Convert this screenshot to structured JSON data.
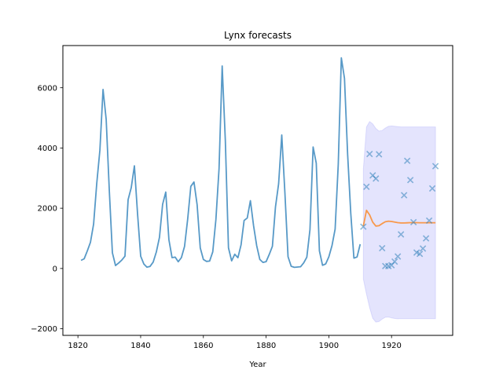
{
  "chart_data": {
    "type": "line",
    "title": "Lynx forecasts",
    "xlabel": "Year",
    "ylabel": "",
    "xlim": [
      1815.2,
      1939.5
    ],
    "ylim": [
      -2220,
      7400
    ],
    "xticks": [
      1820,
      1840,
      1860,
      1880,
      1900,
      1920
    ],
    "yticks": [
      -2000,
      0,
      2000,
      4000,
      6000
    ],
    "grid": false,
    "legend": null,
    "series": [
      {
        "name": "training",
        "kind": "line",
        "color": "#1f77b4",
        "alpha": 0.75,
        "x_start": 1821,
        "values": [
          269,
          321,
          585,
          871,
          1475,
          2821,
          3928,
          5943,
          4950,
          2577,
          523,
          98,
          184,
          279,
          409,
          2285,
          2685,
          3409,
          1824,
          409,
          151,
          45,
          68,
          213,
          546,
          1033,
          2129,
          2536,
          957,
          361,
          377,
          225,
          360,
          731,
          1638,
          2725,
          2871,
          2119,
          684,
          299,
          236,
          245,
          552,
          1623,
          3311,
          6721,
          4254,
          687,
          255,
          473,
          358,
          784,
          1594,
          1676,
          2251,
          1426,
          756,
          299,
          201,
          229,
          469,
          736,
          2042,
          2811,
          4431,
          2511,
          389,
          73,
          39,
          49,
          59,
          188,
          377,
          1292,
          4031,
          3495,
          587,
          105,
          153,
          387,
          758,
          1307,
          3465,
          6991,
          6313,
          3794,
          1836,
          345,
          382,
          808
        ]
      },
      {
        "name": "test",
        "kind": "scatter",
        "marker": "x",
        "color": "#1f77b4",
        "alpha": 0.5,
        "x_start": 1911,
        "values": [
          1388,
          2713,
          3800,
          3091,
          2985,
          3790,
          674,
          81,
          80,
          108,
          229,
          399,
          1132,
          2432,
          3574,
          2935,
          1537,
          529,
          485,
          662,
          1000,
          1590,
          2657,
          3396
        ]
      },
      {
        "name": "forecast",
        "kind": "line",
        "color": "#ff7f0e",
        "alpha": 0.75,
        "x_start": 1911,
        "values": [
          1410,
          1930,
          1780,
          1540,
          1410,
          1420,
          1490,
          1550,
          1570,
          1560,
          1540,
          1520,
          1510,
          1510,
          1515,
          1520,
          1520,
          1520,
          1518,
          1518,
          1518,
          1518,
          1518,
          1518
        ]
      },
      {
        "name": "forecast_interval",
        "kind": "band",
        "color": "#6a6af5",
        "alpha": 0.18,
        "x_start": 1911,
        "upper": [
          3300,
          4700,
          4880,
          4800,
          4650,
          4560,
          4580,
          4660,
          4720,
          4730,
          4720,
          4710,
          4700,
          4700,
          4700,
          4700,
          4700,
          4700,
          4700,
          4700,
          4700,
          4700,
          4700,
          4700
        ],
        "lower": [
          -350,
          -850,
          -1300,
          -1650,
          -1780,
          -1760,
          -1680,
          -1620,
          -1610,
          -1640,
          -1660,
          -1670,
          -1665,
          -1665,
          -1665,
          -1665,
          -1665,
          -1665,
          -1665,
          -1665,
          -1665,
          -1665,
          -1665,
          -1665
        ]
      }
    ]
  }
}
